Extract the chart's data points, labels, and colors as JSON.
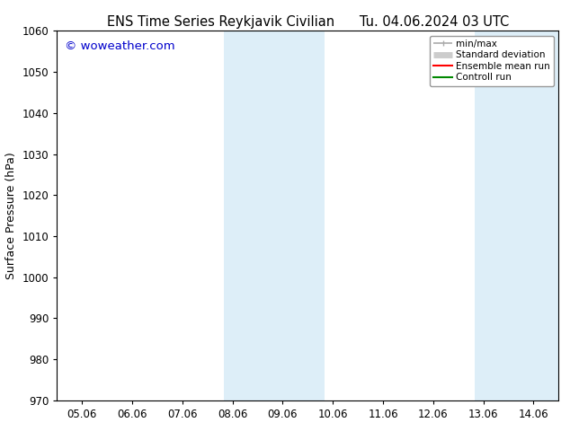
{
  "title": "ENS Time Series Reykjavik Civilian      Tu. 04.06.2024 03 UTC",
  "ylabel": "Surface Pressure (hPa)",
  "watermark": "© woweather.com",
  "watermark_color": "#0000cc",
  "ylim": [
    970,
    1060
  ],
  "yticks": [
    970,
    980,
    990,
    1000,
    1010,
    1020,
    1030,
    1040,
    1050,
    1060
  ],
  "xlim": [
    -0.5,
    9.5
  ],
  "xtick_labels": [
    "05.06",
    "06.06",
    "07.06",
    "08.06",
    "09.06",
    "10.06",
    "11.06",
    "12.06",
    "13.06",
    "14.06"
  ],
  "xtick_positions": [
    0,
    1,
    2,
    3,
    4,
    5,
    6,
    7,
    8,
    9
  ],
  "shaded_bands": [
    {
      "x_start": 2.83,
      "x_end": 4.83
    },
    {
      "x_start": 7.83,
      "x_end": 9.5
    }
  ],
  "shade_color": "#ddeef8",
  "background_color": "#ffffff",
  "legend_items": [
    {
      "label": "min/max",
      "color": "#aaaaaa",
      "lw": 1.2
    },
    {
      "label": "Standard deviation",
      "color": "#cccccc",
      "lw": 5
    },
    {
      "label": "Ensemble mean run",
      "color": "#ff0000",
      "lw": 1.5
    },
    {
      "label": "Controll run",
      "color": "#008800",
      "lw": 1.5
    }
  ],
  "title_fontsize": 10.5,
  "tick_fontsize": 8.5,
  "ylabel_fontsize": 9,
  "watermark_fontsize": 9.5
}
